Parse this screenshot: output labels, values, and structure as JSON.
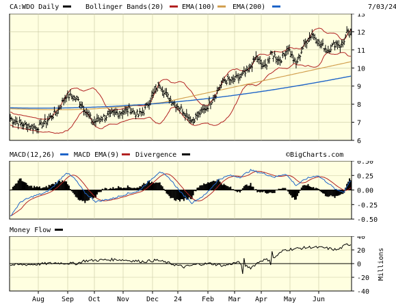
{
  "header": {
    "symbol_label": "CA:WDO Daily",
    "indicator_label": "Bollinger Bands(20)",
    "ema1_label": "EMA(100)",
    "ema2_label": "EMA(200)",
    "date": "7/03/24"
  },
  "macd_header": {
    "macd_label": "MACD(12,26)",
    "signal_label": "MACD EMA(9)",
    "divergence_label": "Divergence",
    "watermark": "©BigCharts.com"
  },
  "mf_header": {
    "label": "Money Flow",
    "units": "Millions"
  },
  "months": [
    "Aug",
    "Sep",
    "Oct",
    "Nov",
    "Dec",
    "24",
    "Feb",
    "Mar",
    "Apr",
    "May",
    "Jun"
  ],
  "colors": {
    "panel_bg": "#ffffe0",
    "grid": "#c8c8a0",
    "price": "#000000",
    "bollinger": "#b22222",
    "ema100": "#d2a050",
    "ema200": "#1e64c8",
    "macd_line": "#1e64c8",
    "macd_signal": "#b22222",
    "divergence": "#000000"
  },
  "chart_data": [
    {
      "type": "line",
      "title": "CA:WDO Daily",
      "x_categories": [
        "Aug",
        "Sep",
        "Oct",
        "Nov",
        "Dec",
        "24",
        "Feb",
        "Mar",
        "Apr",
        "May",
        "Jun"
      ],
      "ylim": [
        6,
        13
      ],
      "y_ticks": [
        6,
        7,
        8,
        9,
        10,
        11,
        12,
        13
      ],
      "price_anchors": [
        [
          0,
          7.2
        ],
        [
          12,
          6.8
        ],
        [
          20,
          6.7
        ],
        [
          28,
          7.1
        ],
        [
          35,
          7.6
        ],
        [
          42,
          8.5
        ],
        [
          50,
          8.3
        ],
        [
          56,
          7.7
        ],
        [
          62,
          7.0
        ],
        [
          70,
          7.3
        ],
        [
          80,
          7.5
        ],
        [
          90,
          7.7
        ],
        [
          96,
          7.4
        ],
        [
          100,
          7.6
        ],
        [
          106,
          8.4
        ],
        [
          112,
          9.1
        ],
        [
          118,
          8.4
        ],
        [
          124,
          8.0
        ],
        [
          130,
          7.6
        ],
        [
          136,
          7.1
        ],
        [
          142,
          7.5
        ],
        [
          148,
          7.9
        ],
        [
          154,
          8.6
        ],
        [
          160,
          9.3
        ],
        [
          166,
          9.3
        ],
        [
          172,
          9.5
        ],
        [
          178,
          9.8
        ],
        [
          184,
          10.6
        ],
        [
          190,
          10.0
        ],
        [
          196,
          10.8
        ],
        [
          202,
          10.4
        ],
        [
          208,
          11.1
        ],
        [
          214,
          10.2
        ],
        [
          220,
          11.3
        ],
        [
          226,
          11.9
        ],
        [
          232,
          11.3
        ],
        [
          238,
          11.0
        ],
        [
          244,
          11.4
        ],
        [
          248,
          11.2
        ],
        [
          252,
          11.9
        ]
      ],
      "series": [
        {
          "name": "Bollinger Bands(20)"
        },
        {
          "name": "EMA(100)",
          "start": 7.75,
          "end": 10.35
        },
        {
          "name": "EMA(200)",
          "start": 7.8,
          "end": 9.55
        }
      ]
    },
    {
      "type": "line",
      "title": "MACD(12,26)",
      "ylim": [
        -0.5,
        0.5
      ],
      "y_ticks": [
        0.5,
        0.25,
        0.0,
        -0.25,
        -0.5
      ],
      "y_tick_labels": [
        "0.50",
        "0.25",
        "0.00",
        "-0.25",
        "-0.50"
      ],
      "macd_anchors": [
        [
          0,
          -0.45
        ],
        [
          8,
          -0.2
        ],
        [
          18,
          -0.1
        ],
        [
          26,
          -0.05
        ],
        [
          32,
          0.05
        ],
        [
          42,
          0.3
        ],
        [
          48,
          0.2
        ],
        [
          56,
          -0.05
        ],
        [
          64,
          -0.2
        ],
        [
          76,
          -0.15
        ],
        [
          88,
          -0.06
        ],
        [
          96,
          -0.02
        ],
        [
          104,
          0.15
        ],
        [
          112,
          0.32
        ],
        [
          120,
          0.18
        ],
        [
          128,
          -0.05
        ],
        [
          136,
          -0.22
        ],
        [
          146,
          -0.08
        ],
        [
          156,
          0.18
        ],
        [
          164,
          0.25
        ],
        [
          172,
          0.22
        ],
        [
          180,
          0.34
        ],
        [
          190,
          0.28
        ],
        [
          198,
          0.22
        ],
        [
          206,
          0.28
        ],
        [
          214,
          0.08
        ],
        [
          222,
          0.2
        ],
        [
          230,
          0.25
        ],
        [
          238,
          0.12
        ],
        [
          244,
          0.0
        ],
        [
          250,
          -0.03
        ],
        [
          254,
          0.15
        ]
      ],
      "series": [
        {
          "name": "MACD(12,26)"
        },
        {
          "name": "MACD EMA(9)"
        },
        {
          "name": "Divergence"
        }
      ]
    },
    {
      "type": "line",
      "title": "Money Flow",
      "ylabel": "Millions",
      "ylim": [
        -40,
        40
      ],
      "y_ticks": [
        40,
        20,
        0,
        -20,
        -40
      ],
      "mf_anchors": [
        [
          0,
          -2
        ],
        [
          20,
          -1
        ],
        [
          35,
          1
        ],
        [
          50,
          0
        ],
        [
          55,
          4
        ],
        [
          65,
          5
        ],
        [
          80,
          6
        ],
        [
          100,
          3
        ],
        [
          110,
          5
        ],
        [
          120,
          0
        ],
        [
          130,
          -5
        ],
        [
          140,
          -1
        ],
        [
          150,
          0
        ],
        [
          160,
          -3
        ],
        [
          170,
          2
        ],
        [
          180,
          -6
        ],
        [
          188,
          5
        ],
        [
          196,
          6
        ],
        [
          205,
          20
        ],
        [
          215,
          22
        ],
        [
          225,
          24
        ],
        [
          235,
          23
        ],
        [
          245,
          20
        ],
        [
          252,
          28
        ]
      ]
    }
  ]
}
